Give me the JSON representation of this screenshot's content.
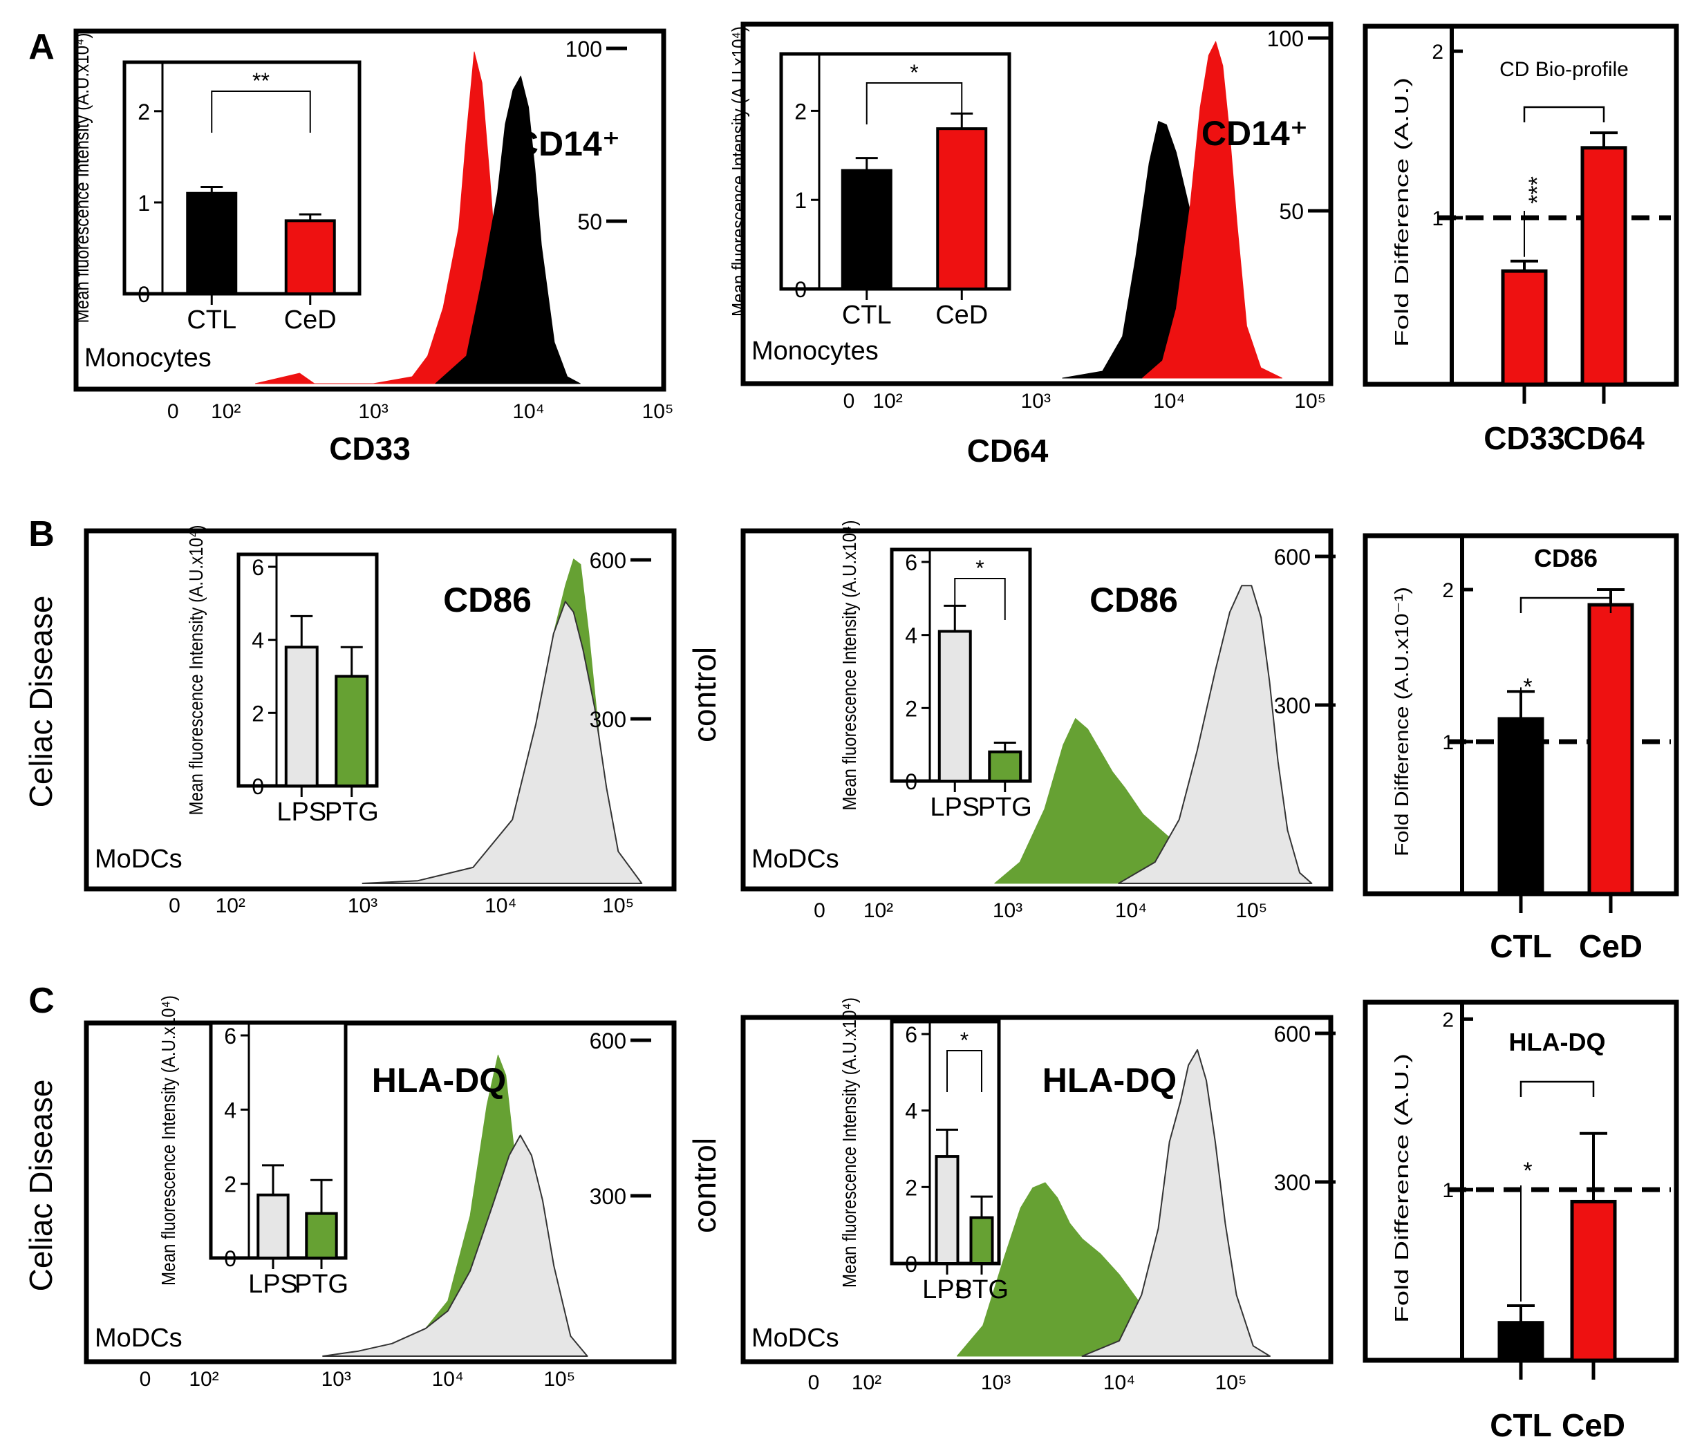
{
  "panel_letters": [
    "A",
    "B",
    "C"
  ],
  "colors": {
    "ctl": "#000000",
    "ced": "#ee1111",
    "lps": "#e6e6e6",
    "ptg": "#66a133",
    "frame": "#000000"
  },
  "chart_data": [
    {
      "id": "A1",
      "type": "area",
      "panel": "A",
      "marker": "CD33",
      "title": "CD14⁺",
      "gate": "Monocytes",
      "xlabel": "CD33",
      "x_scale": "log",
      "x_ticks": [
        "0",
        "10²",
        "10³",
        "10⁴",
        "10⁵"
      ],
      "y_ticks": [
        "100",
        "50"
      ],
      "ylim": [
        0,
        100
      ],
      "series": [
        {
          "name": "CeD",
          "color": "#ee1111",
          "x": [
            2.2,
            2.5,
            2.6,
            3.0,
            3.25,
            3.35,
            3.45,
            3.55,
            3.6,
            3.65,
            3.7,
            3.75,
            3.8,
            3.87,
            3.95,
            4.1,
            4.3
          ],
          "y": [
            0,
            3,
            0,
            0,
            2,
            8,
            22,
            45,
            72,
            96,
            87,
            60,
            30,
            10,
            2,
            0,
            0
          ]
        },
        {
          "name": "CTL",
          "color": "#000000",
          "x": [
            3.4,
            3.6,
            3.7,
            3.8,
            3.85,
            3.9,
            3.95,
            4.0,
            4.05,
            4.1,
            4.2,
            4.3,
            4.4
          ],
          "y": [
            0,
            8,
            30,
            55,
            75,
            85,
            89,
            80,
            62,
            40,
            12,
            2,
            0
          ]
        }
      ],
      "inset": {
        "type": "bar",
        "ylabel": "Mean fluorescence Intensity (A.U.x10⁴)",
        "ylim": [
          0,
          2.4
        ],
        "y_ticks": [
          "0",
          "1",
          "2"
        ],
        "categories": [
          "CTL",
          "CeD"
        ],
        "values": [
          1.1,
          0.8
        ],
        "errors": [
          0.07,
          0.07
        ],
        "significance": "**"
      }
    },
    {
      "id": "A2",
      "type": "area",
      "panel": "A",
      "marker": "CD64",
      "title": "CD14⁺",
      "gate": "Monocytes",
      "xlabel": "CD64",
      "x_scale": "log",
      "x_ticks": [
        "0",
        "10²",
        "10³",
        "10⁴",
        "10⁵"
      ],
      "y_ticks": [
        "100",
        "50"
      ],
      "ylim": [
        0,
        100
      ],
      "series": [
        {
          "name": "CTL",
          "color": "#000000",
          "x": [
            3.2,
            3.5,
            3.65,
            3.75,
            3.85,
            3.92,
            3.98,
            4.05,
            4.15,
            4.25,
            4.35,
            4.45,
            4.6
          ],
          "y": [
            0,
            2,
            12,
            35,
            62,
            74,
            73,
            65,
            48,
            30,
            12,
            3,
            0
          ]
        },
        {
          "name": "CeD",
          "color": "#ee1111",
          "x": [
            3.8,
            3.95,
            4.05,
            4.15,
            4.22,
            4.28,
            4.33,
            4.38,
            4.43,
            4.48,
            4.55,
            4.65,
            4.8
          ],
          "y": [
            0,
            5,
            20,
            50,
            78,
            93,
            97,
            90,
            70,
            45,
            15,
            3,
            0
          ]
        }
      ],
      "inset": {
        "type": "bar",
        "ylabel": "Mean fluorescence Intensity (A.U.x10⁴)",
        "ylim": [
          0,
          2.5
        ],
        "y_ticks": [
          "0",
          "1",
          "2"
        ],
        "categories": [
          "CTL",
          "CeD"
        ],
        "values": [
          1.33,
          1.8
        ],
        "errors": [
          0.14,
          0.17
        ],
        "significance": "*"
      }
    },
    {
      "id": "A3",
      "type": "bar",
      "panel": "A",
      "title": "CD Bio-profile",
      "ylabel": "Fold Difference (A.U.)",
      "y_ticks": [
        "1",
        "2"
      ],
      "ylim": [
        0,
        2.1
      ],
      "reference": 1,
      "categories": [
        "CD33",
        "CD64"
      ],
      "values": [
        0.68,
        1.42
      ],
      "errors": [
        0.06,
        0.09
      ],
      "colors": [
        "#ee1111",
        "#ee1111"
      ],
      "significance": "***"
    },
    {
      "id": "B1",
      "type": "area",
      "panel": "B",
      "group": "Celiac Disease",
      "title": "CD86",
      "gate": "MoDCs",
      "x_scale": "log",
      "x_ticks": [
        "0",
        "10²",
        "10³",
        "10⁴",
        "10⁵"
      ],
      "y_ticks": [
        "600",
        "300"
      ],
      "ylim": [
        0,
        650
      ],
      "series": [
        {
          "name": "PTG",
          "color": "#66a133",
          "x": [
            3.0,
            3.4,
            3.8,
            4.1,
            4.3,
            4.45,
            4.55,
            4.62,
            4.68,
            4.75,
            4.85,
            4.95,
            5.1
          ],
          "y": [
            0,
            5,
            30,
            120,
            300,
            470,
            560,
            610,
            600,
            470,
            250,
            80,
            0
          ]
        },
        {
          "name": "LPS",
          "color": "#e6e6e6",
          "x": [
            3.0,
            3.4,
            3.8,
            4.1,
            4.3,
            4.45,
            4.55,
            4.62,
            4.7,
            4.8,
            4.9,
            5.0,
            5.2
          ],
          "y": [
            0,
            5,
            30,
            120,
            300,
            470,
            530,
            510,
            440,
            330,
            180,
            60,
            0
          ]
        }
      ],
      "inset": {
        "type": "bar",
        "ylabel": "Mean fluorescence Intensity (A.U.x10⁴)",
        "ylim": [
          0,
          6
        ],
        "y_ticks": [
          "0",
          "2",
          "4",
          "6"
        ],
        "categories": [
          "LPS",
          "PTG"
        ],
        "values": [
          3.8,
          3.0
        ],
        "errors": [
          0.85,
          0.8
        ],
        "significance": ""
      }
    },
    {
      "id": "B2",
      "type": "area",
      "panel": "B",
      "group": "control",
      "title": "CD86",
      "gate": "MoDCs",
      "x_scale": "log",
      "x_ticks": [
        "0",
        "10²",
        "10³",
        "10⁴",
        "10⁵"
      ],
      "y_ticks": [
        "600",
        "300"
      ],
      "ylim": [
        0,
        650
      ],
      "series": [
        {
          "name": "PTG",
          "color": "#66a133",
          "x": [
            2.9,
            3.1,
            3.3,
            3.45,
            3.55,
            3.65,
            3.75,
            3.85,
            3.95,
            4.1,
            4.3,
            4.5,
            4.6
          ],
          "y": [
            0,
            40,
            140,
            260,
            310,
            290,
            250,
            210,
            180,
            130,
            90,
            60,
            0
          ]
        },
        {
          "name": "LPS",
          "color": "#e6e6e6",
          "x": [
            3.9,
            4.2,
            4.4,
            4.55,
            4.7,
            4.82,
            4.92,
            5.0,
            5.08,
            5.15,
            5.22,
            5.3,
            5.4,
            5.5
          ],
          "y": [
            0,
            40,
            120,
            250,
            400,
            510,
            560,
            560,
            500,
            380,
            230,
            100,
            20,
            0
          ]
        }
      ],
      "inset": {
        "type": "bar",
        "ylabel": "Mean fluorescence Intensity (A.U.x10⁴)",
        "ylim": [
          0,
          6
        ],
        "y_ticks": [
          "0",
          "2",
          "4",
          "6"
        ],
        "categories": [
          "LPS",
          "PTG"
        ],
        "values": [
          4.1,
          0.8
        ],
        "errors": [
          0.7,
          0.25
        ],
        "significance": "*"
      }
    },
    {
      "id": "B3",
      "type": "bar",
      "panel": "B",
      "title": "CD86",
      "ylabel": "Fold Difference (A.U.x10⁻¹)",
      "y_ticks": [
        "1",
        "2"
      ],
      "ylim": [
        0,
        2.3
      ],
      "reference": 1,
      "categories": [
        "CTL",
        "CeD"
      ],
      "values": [
        1.15,
        1.9
      ],
      "errors": [
        0.18,
        0.1
      ],
      "colors": [
        "#000000",
        "#ee1111"
      ],
      "significance": "*"
    },
    {
      "id": "C1",
      "type": "area",
      "panel": "C",
      "group": "Celiac Disease",
      "title": "HLA-DQ",
      "gate": "MoDCs",
      "x_scale": "log",
      "x_ticks": [
        "0",
        "10²",
        "10³",
        "10⁴",
        "10⁵"
      ],
      "y_ticks": [
        "600",
        "300"
      ],
      "ylim": [
        0,
        650
      ],
      "series": [
        {
          "name": "PTG",
          "color": "#66a133",
          "x": [
            2.9,
            3.2,
            3.5,
            3.8,
            4.0,
            4.2,
            4.35,
            4.45,
            4.52,
            4.6,
            4.7,
            4.85,
            5.0
          ],
          "y": [
            0,
            10,
            25,
            55,
            110,
            280,
            500,
            600,
            560,
            400,
            200,
            50,
            0
          ]
        },
        {
          "name": "LPS",
          "color": "#e6e6e6",
          "x": [
            2.9,
            3.2,
            3.5,
            3.8,
            4.0,
            4.2,
            4.4,
            4.55,
            4.65,
            4.75,
            4.85,
            4.95,
            5.1,
            5.25
          ],
          "y": [
            0,
            10,
            25,
            55,
            90,
            170,
            300,
            400,
            440,
            400,
            310,
            180,
            40,
            0
          ]
        }
      ],
      "inset": {
        "type": "bar",
        "ylabel": "Mean fluorescence Intensity (A.U.x10⁴)",
        "ylim": [
          0,
          6
        ],
        "y_ticks": [
          "0",
          "2",
          "4",
          "6"
        ],
        "categories": [
          "LPS",
          "PTG"
        ],
        "values": [
          1.7,
          1.2
        ],
        "errors": [
          0.8,
          0.9
        ],
        "significance": ""
      }
    },
    {
      "id": "C2",
      "type": "area",
      "panel": "C",
      "group": "control",
      "title": "HLA-DQ",
      "gate": "MoDCs",
      "x_scale": "log",
      "x_ticks": [
        "0",
        "10²",
        "10³",
        "10⁴",
        "10⁵"
      ],
      "y_ticks": [
        "600",
        "300"
      ],
      "ylim": [
        0,
        650
      ],
      "series": [
        {
          "name": "PTG",
          "color": "#66a133",
          "x": [
            2.7,
            2.9,
            3.05,
            3.2,
            3.3,
            3.4,
            3.5,
            3.6,
            3.7,
            3.85,
            4.0,
            4.2,
            4.4
          ],
          "y": [
            0,
            60,
            180,
            290,
            330,
            340,
            310,
            260,
            230,
            200,
            160,
            100,
            0
          ]
        },
        {
          "name": "LPS",
          "color": "#e6e6e6",
          "x": [
            3.7,
            4.0,
            4.2,
            4.35,
            4.45,
            4.55,
            4.62,
            4.7,
            4.78,
            4.86,
            4.95,
            5.05,
            5.2,
            5.35
          ],
          "y": [
            0,
            30,
            120,
            250,
            420,
            500,
            570,
            600,
            540,
            420,
            260,
            120,
            20,
            0
          ]
        }
      ],
      "inset": {
        "type": "bar",
        "ylabel": "Mean fluorescence Intensity (A.U.x10⁴)",
        "ylim": [
          0,
          6
        ],
        "y_ticks": [
          "0",
          "2",
          "4",
          "6"
        ],
        "categories": [
          "LPS",
          "PTG"
        ],
        "values": [
          2.8,
          1.2
        ],
        "errors": [
          0.7,
          0.55
        ],
        "significance": "*"
      }
    },
    {
      "id": "C3",
      "type": "bar",
      "panel": "C",
      "title": "HLA-DQ",
      "ylabel": "Fold Difference (A.U.)",
      "y_ticks": [
        "1",
        "2"
      ],
      "ylim": [
        0,
        2.05
      ],
      "reference": 1,
      "categories": [
        "CTL",
        "CeD"
      ],
      "values": [
        0.22,
        0.93
      ],
      "errors": [
        0.1,
        0.4
      ],
      "colors": [
        "#000000",
        "#ee1111"
      ],
      "significance": "*"
    }
  ]
}
